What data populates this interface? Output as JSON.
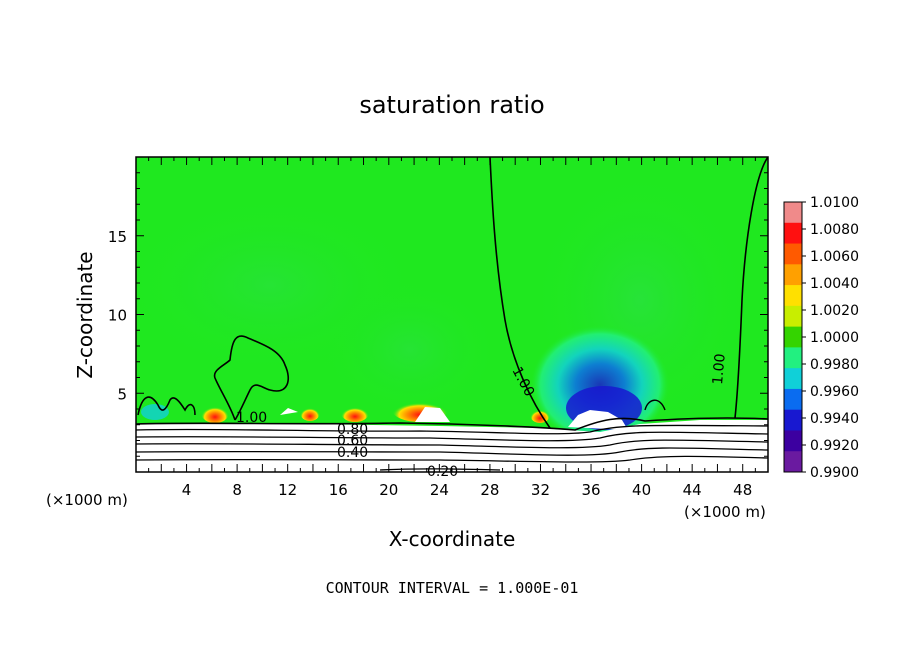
{
  "chart_data": {
    "type": "heatmap",
    "title": "saturation ratio",
    "xlabel": "X-coordinate",
    "ylabel": "Z-coordinate",
    "x_unit": "(×1000 m)",
    "x_unit_right": "(×1000 m)",
    "xlim": [
      0,
      50
    ],
    "ylim": [
      0,
      20
    ],
    "x_ticks": [
      4,
      8,
      12,
      16,
      20,
      24,
      28,
      32,
      36,
      40,
      44,
      48
    ],
    "y_ticks": [
      5,
      10,
      15
    ],
    "colorbar": {
      "labels": [
        "1.0100",
        "1.0080",
        "1.0060",
        "1.0040",
        "1.0020",
        "1.0000",
        "0.9980",
        "0.9960",
        "0.9940",
        "0.9920",
        "0.9900"
      ],
      "colors": [
        "#f08a8a",
        "#ff1010",
        "#ff5a00",
        "#ffa000",
        "#ffe000",
        "#c8ee00",
        "#34d400",
        "#22f080",
        "#10d0d8",
        "#0a6cf0",
        "#1818d0",
        "#3c00a0",
        "#6a1aa0"
      ]
    },
    "field_colors": {
      "background": "#1fe81f",
      "low_band_green": "#40ff40",
      "white": "#ffffff"
    },
    "contour_labels": [
      "1.00",
      "1.00",
      "1.00",
      "0.80",
      "0.60",
      "0.40",
      "0.20"
    ],
    "footer": "CONTOUR INTERVAL = 1.000E-01"
  }
}
